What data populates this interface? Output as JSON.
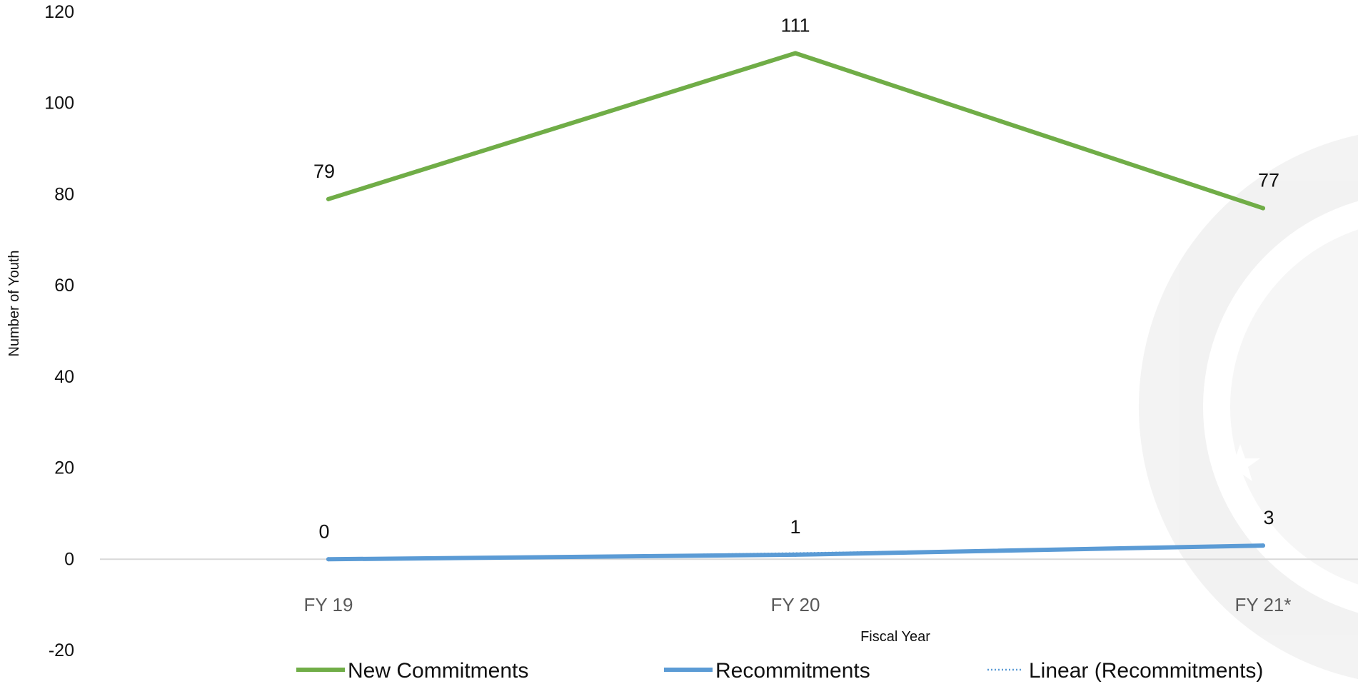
{
  "chart_data": {
    "type": "line",
    "categories": [
      "FY 19",
      "FY 20",
      "FY 21*"
    ],
    "series": [
      {
        "name": "New Commitments",
        "values": [
          79,
          111,
          77
        ],
        "color": "#70AD47"
      },
      {
        "name": "Recommitments",
        "values": [
          0,
          1,
          3
        ],
        "color": "#5B9BD5"
      }
    ],
    "trendline": {
      "name": "Linear (Recommitments)",
      "type": "linear",
      "of": "Recommitments",
      "color": "#5B9BD5",
      "style": "dotted"
    },
    "xlabel": "Fiscal Year",
    "ylabel": "Number of Youth",
    "ylim": [
      -20,
      120
    ],
    "yticks": [
      -20,
      0,
      20,
      40,
      60,
      80,
      100,
      120
    ],
    "grid": false,
    "legend": "bottom",
    "data_labels": true,
    "background": "seal-watermark"
  }
}
